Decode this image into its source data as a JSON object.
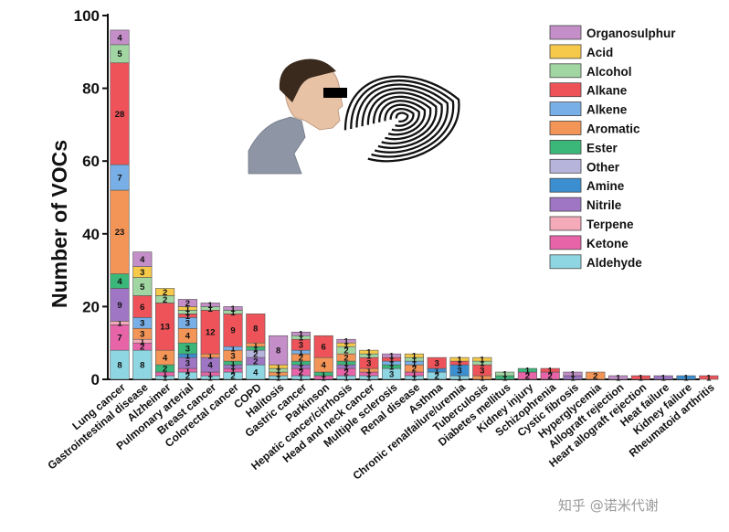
{
  "chart_data": {
    "type": "bar",
    "stacked": true,
    "ylabel": "Number of VOCs",
    "ylim": [
      0,
      100
    ],
    "yticks": [
      0,
      20,
      40,
      60,
      80,
      100
    ],
    "grid": false,
    "legend_position": "top-right",
    "categories": [
      "Lung cancer",
      "Gastrointestinal disease",
      "Alzheimer",
      "Pulmonary arterial",
      "Breast cancer",
      "Colorectal cancer",
      "COPD",
      "Halitosis",
      "Gastric cancer",
      "Parkinson",
      "Hepatic cancer/cirrhosis",
      "Head and neck cancer",
      "Multiple sclerosis",
      "Renal disease",
      "Asthma",
      "Chronic renalfailure/uremia",
      "Tuberculosis",
      "Diabetes mellitus",
      "Kidney injury",
      "Schizophrenia",
      "Cystic fibrosis",
      "Hyperglycemia",
      "Allograft rejection",
      "Heart allograft rejection",
      "Heat failure",
      "Kidney failure",
      "Rheumatoid arthritis"
    ],
    "series": [
      {
        "name": "Aldehyde",
        "color": "#8fd6e3",
        "values": [
          8,
          8,
          1,
          2,
          1,
          2,
          4,
          1,
          1,
          0,
          1,
          1,
          3,
          1,
          2,
          1,
          0,
          0,
          0,
          0,
          0,
          0,
          0,
          0,
          0,
          0,
          0
        ]
      },
      {
        "name": "Ketone",
        "color": "#e864a9",
        "values": [
          7,
          2,
          1,
          1,
          1,
          1,
          0,
          0,
          2,
          1,
          2,
          1,
          0,
          1,
          0,
          0,
          0,
          0,
          2,
          2,
          0,
          0,
          0,
          0,
          0,
          0,
          0
        ]
      },
      {
        "name": "Terpene",
        "color": "#f4aab8",
        "values": [
          1,
          1,
          0,
          0,
          0,
          0,
          0,
          0,
          0,
          0,
          0,
          0,
          0,
          0,
          0,
          0,
          0,
          0,
          0,
          0,
          0,
          0,
          0,
          0,
          0,
          0,
          0
        ]
      },
      {
        "name": "Nitrile",
        "color": "#9e76c4",
        "values": [
          9,
          0,
          0,
          3,
          4,
          1,
          2,
          0,
          1,
          0,
          1,
          0,
          0,
          0,
          0,
          0,
          0,
          0,
          0,
          0,
          1,
          0,
          0,
          0,
          1,
          0,
          0
        ]
      },
      {
        "name": "Amine",
        "color": "#3b8fd1",
        "values": [
          0,
          0,
          0,
          1,
          0,
          0,
          0,
          0,
          0,
          0,
          0,
          0,
          0,
          0,
          1,
          3,
          0,
          0,
          0,
          0,
          0,
          0,
          0,
          0,
          0,
          1,
          0
        ]
      },
      {
        "name": "Other",
        "color": "#b7b4dc",
        "values": [
          0,
          0,
          0,
          0,
          0,
          0,
          2,
          0,
          0,
          0,
          0,
          0,
          0,
          0,
          0,
          0,
          0,
          0,
          0,
          0,
          0,
          0,
          0,
          0,
          0,
          0,
          0
        ]
      },
      {
        "name": "Ester",
        "color": "#3cb77a",
        "values": [
          4,
          0,
          2,
          3,
          0,
          1,
          1,
          0,
          1,
          1,
          1,
          0,
          1,
          0,
          0,
          0,
          0,
          1,
          1,
          0,
          0,
          0,
          0,
          0,
          0,
          0,
          0
        ]
      },
      {
        "name": "Aromatic",
        "color": "#f39556",
        "values": [
          23,
          3,
          4,
          4,
          1,
          3,
          1,
          1,
          2,
          4,
          2,
          1,
          0,
          2,
          0,
          0,
          1,
          0,
          0,
          0,
          0,
          2,
          0,
          0,
          0,
          0,
          0
        ]
      },
      {
        "name": "Alkene",
        "color": "#78afe6",
        "values": [
          7,
          3,
          0,
          3,
          0,
          1,
          0,
          0,
          1,
          0,
          0,
          0,
          1,
          1,
          0,
          0,
          0,
          0,
          0,
          0,
          0,
          0,
          0,
          0,
          0,
          0,
          0
        ]
      },
      {
        "name": "Alkane",
        "color": "#ef535a",
        "values": [
          28,
          6,
          13,
          1,
          12,
          9,
          8,
          0,
          3,
          6,
          0,
          3,
          1,
          0,
          3,
          1,
          3,
          0,
          0,
          1,
          0,
          0,
          0,
          1,
          0,
          0,
          1
        ]
      },
      {
        "name": "Alcohol",
        "color": "#a1d6a3",
        "values": [
          5,
          5,
          2,
          1,
          1,
          1,
          0,
          1,
          1,
          0,
          2,
          1,
          0,
          1,
          0,
          0,
          1,
          1,
          0,
          0,
          0,
          0,
          0,
          0,
          0,
          0,
          0
        ]
      },
      {
        "name": "Acid",
        "color": "#f6c94a",
        "values": [
          0,
          3,
          2,
          1,
          0,
          0,
          0,
          1,
          0,
          0,
          1,
          1,
          0,
          1,
          0,
          1,
          1,
          0,
          0,
          0,
          0,
          0,
          0,
          0,
          0,
          0,
          0
        ]
      },
      {
        "name": "Organosulphur",
        "color": "#c48fc8",
        "values": [
          4,
          4,
          0,
          2,
          1,
          1,
          0,
          8,
          1,
          0,
          1,
          0,
          1,
          0,
          0,
          0,
          0,
          0,
          0,
          0,
          1,
          0,
          1,
          0,
          0,
          0,
          0
        ]
      }
    ],
    "legend_order": [
      "Organosulphur",
      "Acid",
      "Alcohol",
      "Alkane",
      "Alkene",
      "Aromatic",
      "Ester",
      "Other",
      "Amine",
      "Nitrile",
      "Terpene",
      "Ketone",
      "Aldehyde"
    ]
  },
  "watermark": "知乎 @诺米代谢"
}
